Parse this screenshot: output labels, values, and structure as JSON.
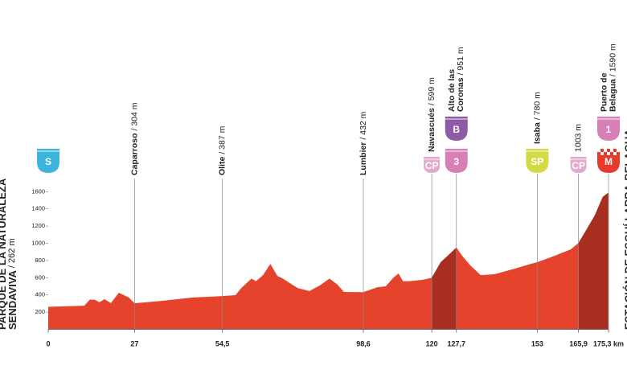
{
  "chart_data": {
    "type": "area",
    "start": {
      "lines": [
        "PARQUE DE LA NATURALEZA",
        "SENDAVIVA"
      ],
      "altitude": "/ 262 m"
    },
    "finish": {
      "lines": [
        "ESTACIÓN DE ESQUÍ LARRA-BELAGUA"
      ]
    },
    "x": [
      0,
      11.3,
      13,
      14.5,
      16,
      17.6,
      19.6,
      22.1,
      25.2,
      27,
      30.2,
      35.2,
      45.3,
      50.8,
      54.5,
      58.6,
      60.4,
      63.6,
      65,
      67.2,
      69.5,
      71.7,
      73.4,
      78,
      81.7,
      85,
      88,
      90.5,
      92.5,
      98.6,
      103,
      105.6,
      108,
      109.6,
      111,
      113,
      117,
      120,
      122.8,
      125,
      127.7,
      129.5,
      132,
      135.3,
      139.6,
      145.9,
      151,
      153,
      158.5,
      163.5,
      165.9,
      168.5,
      171,
      173.5,
      175.3
    ],
    "values": [
      262,
      275,
      345,
      345,
      315,
      350,
      305,
      425,
      370,
      304,
      313,
      330,
      370,
      380,
      387,
      397,
      480,
      590,
      560,
      630,
      760,
      620,
      590,
      480,
      445,
      510,
      590,
      520,
      435,
      432,
      490,
      500,
      600,
      650,
      560,
      560,
      575,
      599,
      780,
      855,
      951,
      855,
      745,
      630,
      640,
      705,
      760,
      780,
      855,
      930,
      1003,
      1165,
      1325,
      1540,
      1590
    ],
    "color": "#e5432b",
    "shade_color": "#9c2a1e",
    "shaded_ranges": [
      [
        120,
        127.7
      ],
      [
        165.9,
        175.3
      ]
    ],
    "xlim": [
      0,
      175.3
    ],
    "ylim": [
      0,
      1700
    ],
    "xticks": [
      0,
      27,
      {
        "value": 54.5,
        "label": "54,5"
      },
      {
        "value": 98.6,
        "label": "98,6"
      },
      120,
      {
        "value": 127.7,
        "label": "127,7"
      },
      153,
      {
        "value": 165.9,
        "label": "165,9"
      },
      {
        "value": 175.3,
        "label": "175,3 km"
      }
    ],
    "yticks": [
      200,
      400,
      600,
      800,
      1000,
      1200,
      1400,
      1600
    ],
    "waypoints": [
      {
        "km": 0,
        "badges": [
          {
            "text": "S",
            "color": "#3db4dc"
          }
        ]
      },
      {
        "km": 27,
        "name": [
          "Caparroso"
        ],
        "altitude": "/ 304 m"
      },
      {
        "km": 54.5,
        "name": [
          "Olite"
        ],
        "altitude": "/ 387 m"
      },
      {
        "km": 98.6,
        "name": [
          "Lumbier"
        ],
        "altitude": "/ 432 m"
      },
      {
        "km": 120,
        "name": [
          "Navascués"
        ],
        "altitude": "/ 599 m",
        "badges": [
          {
            "text": "CP",
            "color": "#e3a9cc"
          }
        ]
      },
      {
        "km": 127.7,
        "name": [
          "Alto de las",
          "Coronas"
        ],
        "altitude": "/ 951 m",
        "badges": [
          {
            "text": "3",
            "color": "#d77fb7"
          },
          {
            "text": "B",
            "color": "#8f5aa6"
          }
        ]
      },
      {
        "km": 153,
        "name": [
          "Isaba"
        ],
        "altitude": "/ 780 m",
        "badges": [
          {
            "text": "SP",
            "color": "#d4da46"
          }
        ]
      },
      {
        "km": 165.9,
        "altitude": "1003 m",
        "badges": [
          {
            "text": "CP",
            "color": "#e3a9cc"
          }
        ]
      },
      {
        "km": 175.3,
        "name": [
          "Puerto de",
          "Belagua"
        ],
        "altitude": "/ 1590 m",
        "badges": [
          {
            "text": "M",
            "color": "#e8392a"
          },
          {
            "text": "1",
            "color": "#d77fb7"
          }
        ]
      }
    ]
  }
}
